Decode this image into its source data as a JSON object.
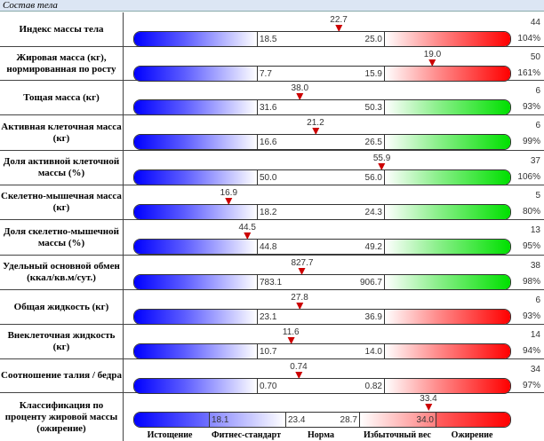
{
  "title": "Состав тела",
  "rows": [
    {
      "label": "Индекс массы тела",
      "value": "22.7",
      "low": "18.5",
      "high": "25.0",
      "count": "44",
      "pct": "104%",
      "color": "red"
    },
    {
      "label": "Жировая масса (кг), нормированная по росту",
      "value": "19.0",
      "low": "7.7",
      "high": "15.9",
      "count": "50",
      "pct": "161%",
      "color": "red"
    },
    {
      "label": "Тощая масса (кг)",
      "value": "38.0",
      "low": "31.6",
      "high": "50.3",
      "count": "6",
      "pct": "93%",
      "color": "green"
    },
    {
      "label": "Активная клеточная масса (кг)",
      "value": "21.2",
      "low": "16.6",
      "high": "26.5",
      "count": "6",
      "pct": "99%",
      "color": "green"
    },
    {
      "label": "Доля активной клеточной массы (%)",
      "value": "55.9",
      "low": "50.0",
      "high": "56.0",
      "count": "37",
      "pct": "106%",
      "color": "green"
    },
    {
      "label": "Скелетно-мышечная масса (кг)",
      "value": "16.9",
      "low": "18.2",
      "high": "24.3",
      "count": "5",
      "pct": "80%",
      "color": "green"
    },
    {
      "label": "Доля скелетно-мышечной массы (%)",
      "value": "44.5",
      "low": "44.8",
      "high": "49.2",
      "count": "13",
      "pct": "95%",
      "color": "green"
    },
    {
      "label": "Удельный основной обмен (ккал/кв.м/сут.)",
      "value": "827.7",
      "low": "783.1",
      "high": "906.7",
      "count": "38",
      "pct": "98%",
      "color": "green"
    },
    {
      "label": "Общая жидкость (кг)",
      "value": "27.8",
      "low": "23.1",
      "high": "36.9",
      "count": "6",
      "pct": "93%",
      "color": "red"
    },
    {
      "label": "Внеклеточная жидкость (кг)",
      "value": "11.6",
      "low": "10.7",
      "high": "14.0",
      "count": "14",
      "pct": "94%",
      "color": "red"
    },
    {
      "label": "Соотношение талия / бедра",
      "value": "0.74",
      "low": "0.70",
      "high": "0.82",
      "count": "34",
      "pct": "97%",
      "color": "red"
    }
  ],
  "classification": {
    "label": "Классификация по проценту жировой массы (ожирение)",
    "value": "33.4",
    "t1": "18.1",
    "t2": "23.4",
    "t3": "28.7",
    "t4": "34.0",
    "categories": [
      "Истощение",
      "Фитнес-стандарт",
      "Норма",
      "Избыточный вес",
      "Ожирение"
    ]
  }
}
